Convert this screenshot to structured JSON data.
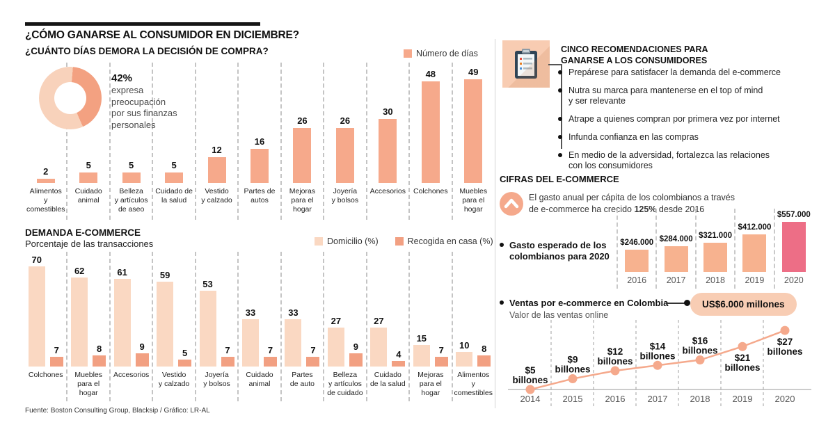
{
  "colors": {
    "salmon": "#F6A98B",
    "salmon_dark": "#F2A082",
    "light_peach": "#FAD8C2",
    "donut_dark": "#F3A181",
    "donut_light": "#F8D2BB",
    "right_bar": "#F7B28F",
    "pink_highlight": "#ED6E86",
    "icon_box_bg": "#F8CCB2",
    "pill_bg": "#F8CDB4",
    "line_color": "#F5A98C"
  },
  "icons": {
    "recommendations": "clipboard-icon",
    "growth": "chevron-up-circle-icon"
  },
  "header": {
    "title": "¿CÓMO GANARSE AL CONSUMIDOR EN DICIEMBRE?",
    "subtitle": "¿CUÁNTO DÍAS DEMORA LA DECISIÓN DE COMPRA?"
  },
  "legends": {
    "chart1": "Número de días",
    "chart2_a": "Domicilio (%)",
    "chart2_b": "Recogida en casa (%)"
  },
  "demanda": {
    "title": "DEMANDA E-COMMERCE",
    "subtitle": "Porcentaje de las transacciones"
  },
  "recommendations": {
    "title_lines": [
      "CINCO RECOMENDACIONES PARA",
      "GANARSE A LOS CONSUMIDORES"
    ],
    "items": [
      [
        "Prepárese para satisfacer la demanda del e-commerce"
      ],
      [
        "Nutra su marca para mantenerse en el top of mind",
        "y ser relevante"
      ],
      [
        "Atrape a quienes compran por primera vez por internet"
      ],
      [
        "Infunda confianza en las compras"
      ],
      [
        "En medio de la adversidad, fortalezca las relaciones",
        "con los consumidores"
      ]
    ]
  },
  "cifras": {
    "heading": "CIFRAS DEL E-COMMERCE",
    "growth_line1": "El gasto anual per cápita de los colombianos a través",
    "growth_line2_pre": "de e-commerce ha crecido ",
    "growth_bold": "125%",
    "growth_line2_post": " desde 2016",
    "spending_label_lines": [
      "Gasto esperado de los",
      "colombianos para 2020"
    ],
    "sales_label": "Ventas por e-commerce en Colombia",
    "sales_sublabel": "Valor de las ventas online",
    "sales_badge": "US$6.000 millones"
  },
  "footer": "Fuente: Boston Consulting Group, Blacksip / Gráfico: LR-AL",
  "chart_data": [
    {
      "id": "worry_donut",
      "type": "pie",
      "label": "42%",
      "value": 42,
      "remainder": 58,
      "caption_lines": [
        "expresa",
        "preocupación",
        "por sus finanzas",
        "personales"
      ]
    },
    {
      "id": "purchase_decision_days",
      "type": "bar",
      "title": "¿CUÁNTO DÍAS DEMORA LA DECISIÓN DE COMPRA?",
      "legend": [
        "Número de días"
      ],
      "categories": [
        [
          "Alimentos",
          "y comestibles"
        ],
        [
          "Cuidado",
          "animal"
        ],
        [
          "Belleza",
          "y artículos",
          "de aseo"
        ],
        [
          "Cuidado de",
          "la salud"
        ],
        [
          "Vestido",
          "y calzado"
        ],
        [
          "Partes de",
          "autos"
        ],
        [
          "Mejoras",
          "para el hogar"
        ],
        [
          "Joyería",
          "y bolsos"
        ],
        [
          "Accesorios"
        ],
        [
          "Colchones"
        ],
        [
          "Muebles",
          "para el hogar"
        ]
      ],
      "values": [
        2,
        5,
        5,
        5,
        12,
        16,
        26,
        26,
        30,
        48,
        49
      ],
      "ylim": [
        0,
        52
      ],
      "grid": false,
      "legend_position": "top-right"
    },
    {
      "id": "ecommerce_demand",
      "type": "bar",
      "title": "DEMANDA E-COMMERCE",
      "subtitle": "Porcentaje de las transacciones",
      "categories": [
        [
          "Colchones"
        ],
        [
          "Muebles",
          "para el hogar"
        ],
        [
          "Accesorios"
        ],
        [
          "Vestido",
          "y calzado"
        ],
        [
          "Joyería",
          "y bolsos"
        ],
        [
          "Cuidado",
          "animal"
        ],
        [
          "Partes",
          "de auto"
        ],
        [
          "Belleza",
          "y artículos",
          "de cuidado"
        ],
        [
          "Cuidado",
          "de la salud"
        ],
        [
          "Mejoras",
          "para el hogar"
        ],
        [
          "Alimentos",
          "y comestibles"
        ]
      ],
      "series": [
        {
          "name": "Domicilio (%)",
          "values": [
            70,
            62,
            61,
            59,
            53,
            33,
            33,
            27,
            27,
            15,
            10
          ]
        },
        {
          "name": "Recogida en casa (%)",
          "values": [
            7,
            8,
            9,
            5,
            7,
            7,
            7,
            9,
            4,
            7,
            8
          ]
        }
      ],
      "ylim": [
        0,
        78
      ],
      "grid": false,
      "legend_position": "top-right"
    },
    {
      "id": "expected_spending",
      "type": "bar",
      "title": "Gasto esperado de los colombianos para 2020",
      "categories": [
        "2016",
        "2017",
        "2018",
        "2019",
        "2020"
      ],
      "values": [
        246000,
        284000,
        321000,
        412000,
        557000
      ],
      "value_labels": [
        "$246.000",
        "$284.000",
        "$321.000",
        "$412.000",
        "$557.000"
      ],
      "highlight_index": 4,
      "ylim": [
        0,
        600000
      ],
      "grid": false
    },
    {
      "id": "online_sales",
      "type": "line",
      "title": "Ventas por e-commerce en Colombia",
      "subtitle": "Valor de las ventas online",
      "x": [
        "2014",
        "2015",
        "2016",
        "2017",
        "2018",
        "2019",
        "2020"
      ],
      "values": [
        5,
        9,
        12,
        14,
        16,
        21,
        27
      ],
      "point_labels": [
        [
          "$5",
          "billones"
        ],
        [
          "$9",
          "billones"
        ],
        [
          "$12",
          "billones"
        ],
        [
          "$14",
          "billones"
        ],
        [
          "$16",
          "billones"
        ],
        [
          "$21",
          "billones"
        ],
        [
          "$27",
          "billones"
        ]
      ],
      "label_position": [
        "above",
        "above",
        "above",
        "above",
        "above",
        "below",
        "below"
      ],
      "ylim": [
        0,
        30
      ],
      "grid": false
    }
  ]
}
